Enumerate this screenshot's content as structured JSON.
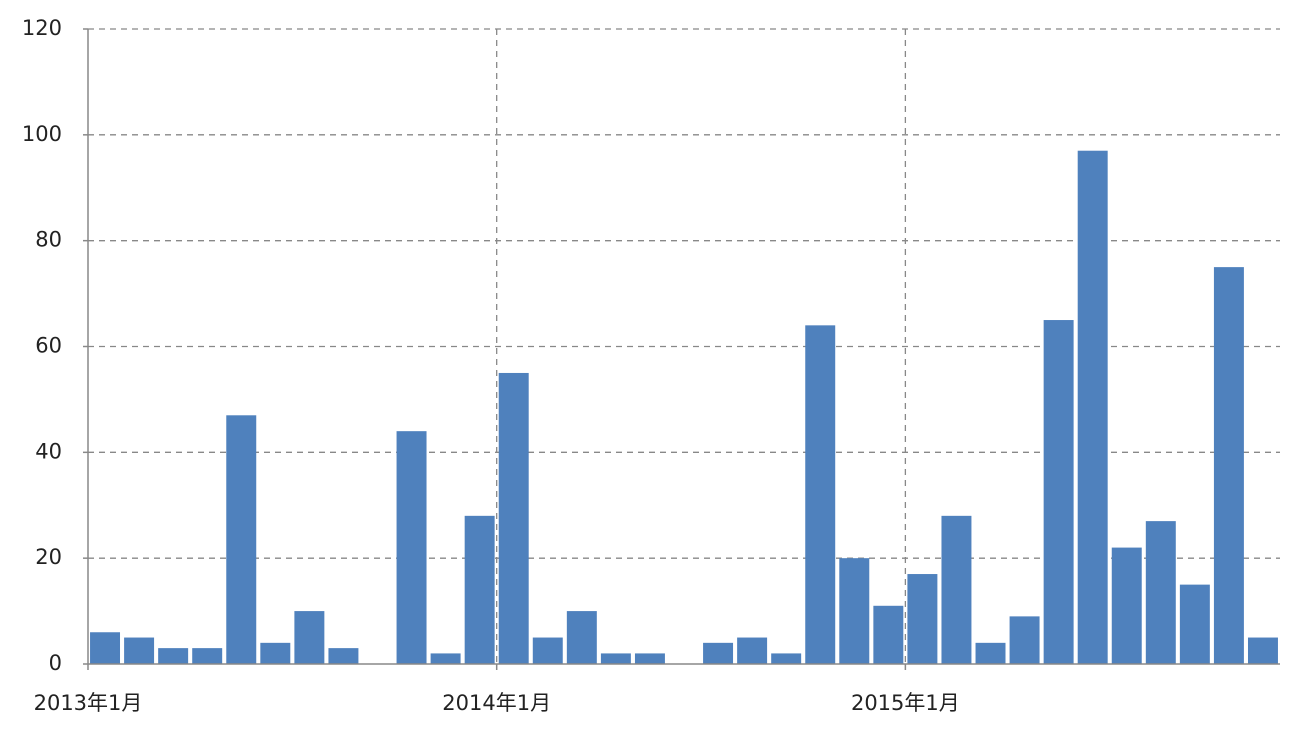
{
  "chart_data": {
    "type": "bar",
    "categories": [
      "2013年1月",
      null,
      null,
      null,
      null,
      null,
      null,
      null,
      null,
      null,
      null,
      null,
      "2014年1月",
      null,
      null,
      null,
      null,
      null,
      null,
      null,
      null,
      null,
      null,
      null,
      "2015年1月",
      null,
      null,
      null,
      null,
      null,
      null,
      null,
      null,
      null,
      null
    ],
    "values": [
      6,
      5,
      3,
      3,
      47,
      4,
      10,
      3,
      0,
      44,
      2,
      28,
      55,
      5,
      10,
      2,
      2,
      0,
      4,
      5,
      2,
      64,
      20,
      11,
      17,
      28,
      4,
      9,
      65,
      97,
      22,
      27,
      15,
      75,
      5
    ],
    "color": "#4f81bd",
    "ylim": [
      0,
      120
    ],
    "yticks": [
      0,
      20,
      40,
      60,
      80,
      100,
      120
    ],
    "grid": true
  }
}
